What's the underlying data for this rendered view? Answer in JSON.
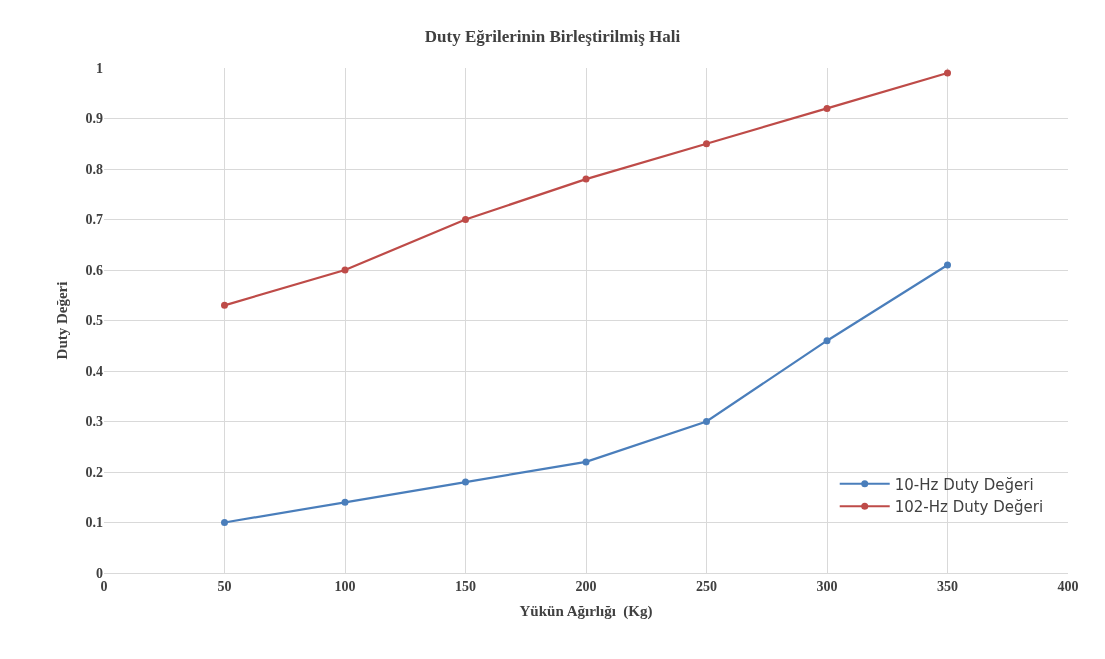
{
  "chart_data": {
    "type": "line",
    "title": "Duty Eğrilerinin Birleştirilmiş Hali",
    "xlabel": "Yükün Ağırlığı  (Kg)",
    "ylabel": "Duty Değeri",
    "x": [
      50,
      100,
      150,
      200,
      250,
      300,
      350
    ],
    "series": [
      {
        "name": "10-Hz Duty Değeri",
        "color": "#4a7ebb",
        "values": [
          0.1,
          0.14,
          0.18,
          0.22,
          0.3,
          0.46,
          0.61
        ]
      },
      {
        "name": "102-Hz Duty Değeri",
        "color": "#be4b48",
        "values": [
          0.53,
          0.6,
          0.7,
          0.78,
          0.85,
          0.92,
          0.99
        ]
      }
    ],
    "xlim": [
      0,
      400
    ],
    "xticks": [
      0,
      50,
      100,
      150,
      200,
      250,
      300,
      350,
      400
    ],
    "ylim": [
      0,
      1
    ],
    "yticks": [
      0,
      0.1,
      0.2,
      0.3,
      0.4,
      0.5,
      0.6,
      0.7,
      0.8,
      0.9,
      1
    ],
    "grid": true,
    "legend": "bottom right",
    "marker": "circle",
    "line_style": "solid"
  }
}
